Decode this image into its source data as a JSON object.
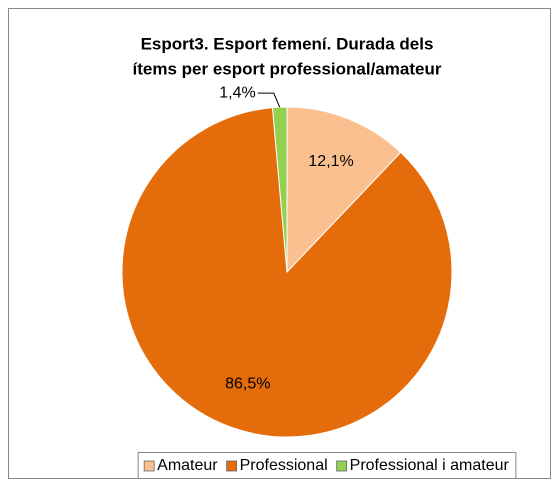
{
  "chart_data": {
    "type": "pie",
    "title": [
      "Esport3. Esport femení. Durada dels",
      "ítems per esport professional/amateur"
    ],
    "categories": [
      "Amateur",
      "Professional",
      "Professional i amateur"
    ],
    "values": [
      12.1,
      86.5,
      1.4
    ],
    "value_labels": [
      "12,1%",
      "86,5%",
      "1,4%"
    ],
    "colors": [
      "#fac090",
      "#e46c0a",
      "#92d050"
    ],
    "legend": "bottom"
  }
}
